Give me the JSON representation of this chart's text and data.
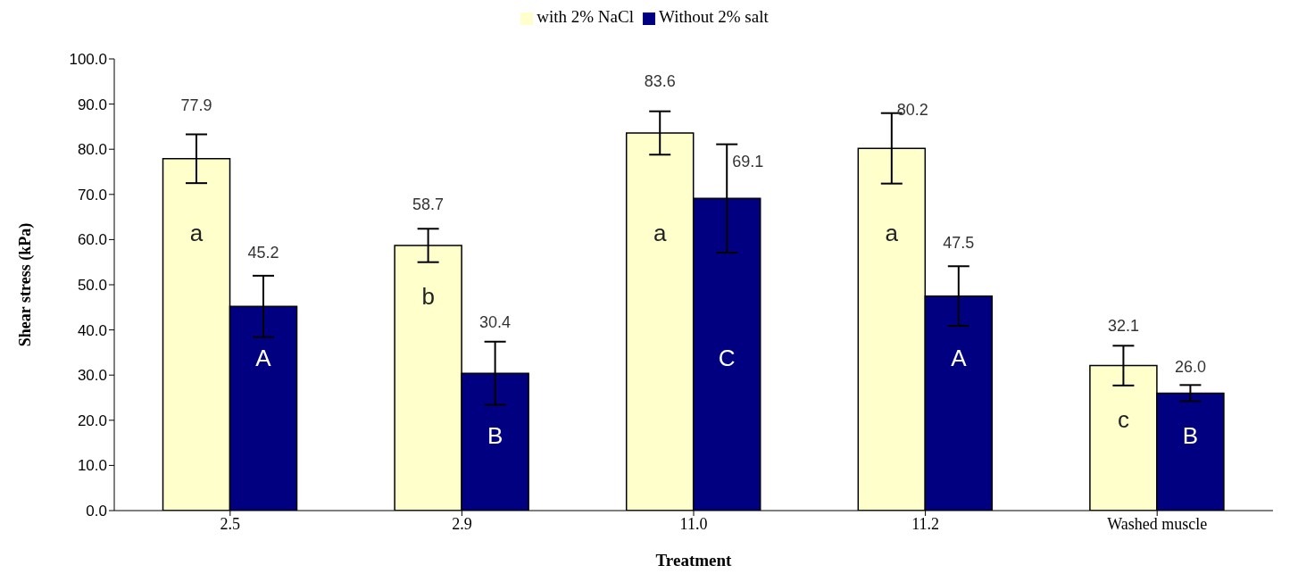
{
  "chart_data": {
    "type": "bar",
    "xlabel": "Treatment",
    "ylabel": "Shear stress (kPa)",
    "categories": [
      "2.5",
      "2.9",
      "11.0",
      "11.2",
      "Washed muscle"
    ],
    "series": [
      {
        "name": "with 2% NaCl",
        "color": "#ffffcc",
        "values": [
          77.9,
          58.7,
          83.6,
          80.2,
          32.1
        ],
        "errors": [
          5.4,
          3.7,
          4.8,
          7.8,
          4.4
        ],
        "value_labels": [
          "77.9",
          "58.7",
          "83.6",
          "80.2",
          "32.1"
        ]
      },
      {
        "name": "Without 2% salt",
        "color": "#000080",
        "values": [
          45.2,
          30.4,
          69.1,
          47.5,
          26.0
        ],
        "errors": [
          6.8,
          7.0,
          12.0,
          6.6,
          1.8
        ],
        "value_labels": [
          "45.2",
          "30.4",
          "69.1",
          "47.5",
          "26.0"
        ]
      }
    ],
    "ylim": [
      0,
      100
    ],
    "yticks": [
      {
        "value": 0,
        "label": "0.0"
      },
      {
        "value": 10,
        "label": "10.0"
      },
      {
        "value": 20,
        "label": "20.0"
      },
      {
        "value": 30,
        "label": "30.0"
      },
      {
        "value": 40,
        "label": "40.0"
      },
      {
        "value": 50,
        "label": "50.0"
      },
      {
        "value": 60,
        "label": "60.0"
      },
      {
        "value": 70,
        "label": "70.0"
      },
      {
        "value": 80,
        "label": "80.0"
      },
      {
        "value": 90,
        "label": "90.0"
      },
      {
        "value": 100,
        "label": "100.0"
      }
    ],
    "grid": false,
    "legend": "top",
    "annotations": [
      {
        "text": "a",
        "x": "2.5",
        "y": 58.5
      },
      {
        "text": "A",
        "x": "2.5",
        "y": 32
      },
      {
        "text": "b",
        "x": "2.9",
        "y": 45
      },
      {
        "text": "B",
        "x": "2.9",
        "y": 15.5
      },
      {
        "text": "a",
        "x": "11.0",
        "y": 58.5
      },
      {
        "text": "C",
        "x": "11.0",
        "y": 32
      },
      {
        "text": "a",
        "x": "11.2",
        "y": 58.5
      },
      {
        "text": "A",
        "x": "11.2",
        "y": 32
      },
      {
        "text": "c",
        "x": "Washed muscle",
        "y": 19
      },
      {
        "text": "B",
        "x": "Washed muscle",
        "y": 15.5
      }
    ]
  }
}
